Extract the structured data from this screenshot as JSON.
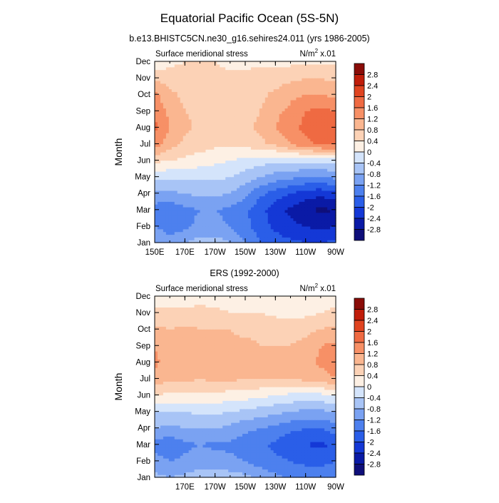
{
  "figure": {
    "title": "Equatorial Pacific Ocean (5S-5N)"
  },
  "colors": {
    "levels": [
      "#0f0f7a",
      "#0a1aa6",
      "#1438d6",
      "#2a5ee8",
      "#4d80ee",
      "#7aa2f2",
      "#a8c4f6",
      "#d4e4fb",
      "#fdf0e4",
      "#fcd2b6",
      "#fab690",
      "#f79066",
      "#ef6a42",
      "#e04420",
      "#c01d0a",
      "#8a0c08"
    ]
  },
  "chart_data": [
    {
      "type": "heatmap",
      "title": "b.e13.BHISTC5CN.ne30_g16.sehires24.011 (yrs 1986-2005)",
      "left_label": "Surface meridional stress",
      "units_label": "N/m",
      "units_sup": "2",
      "units_scale": "x.01",
      "ylabel": "Month",
      "xlabel": "",
      "xlim": [
        150,
        270
      ],
      "x_ticks": [
        150,
        170,
        190,
        210,
        230,
        250,
        270
      ],
      "x_tick_labels": [
        "150E",
        "170E",
        "170W",
        "150W",
        "130W",
        "110W",
        "90W"
      ],
      "y_tick_labels": [
        "Jan",
        "Feb",
        "Mar",
        "Apr",
        "May",
        "Jun",
        "Jul",
        "Aug",
        "Sep",
        "Oct",
        "Nov",
        "Dec"
      ],
      "contour_levels": [
        -2.8,
        -2.4,
        -2,
        -1.6,
        -1.2,
        -0.8,
        -0.4,
        0,
        0.4,
        0.8,
        1.2,
        1.6,
        2,
        2.4,
        2.8
      ],
      "colorbar_labels": [
        "2.8",
        "2.4",
        "2",
        "1.6",
        "1.2",
        "0.8",
        "0.4",
        "0",
        "-0.4",
        "-0.8",
        "-1.2",
        "-1.6",
        "-2",
        "-2.4",
        "-2.8"
      ],
      "x_lon": [
        150,
        160,
        170,
        180,
        190,
        200,
        210,
        220,
        230,
        240,
        250,
        260,
        270
      ],
      "z": [
        [
          -0.8,
          -1.0,
          -0.8,
          -0.6,
          -0.6,
          -0.8,
          -1.2,
          -1.6,
          -1.8,
          -1.9,
          -2.0,
          -2.0,
          -1.9
        ],
        [
          -1.2,
          -1.4,
          -1.3,
          -1.1,
          -1.1,
          -1.2,
          -1.5,
          -1.8,
          -2.1,
          -2.3,
          -2.4,
          -2.5,
          -2.4
        ],
        [
          -1.4,
          -1.5,
          -1.3,
          -1.2,
          -1.2,
          -1.3,
          -1.5,
          -1.9,
          -2.2,
          -2.5,
          -2.7,
          -2.9,
          -2.8
        ],
        [
          -0.9,
          -0.9,
          -0.8,
          -0.7,
          -0.7,
          -0.8,
          -1.1,
          -1.5,
          -1.8,
          -2.0,
          -2.2,
          -2.3,
          -2.1
        ],
        [
          -0.3,
          -0.3,
          -0.3,
          -0.3,
          -0.3,
          -0.4,
          -0.6,
          -0.8,
          -1.0,
          -1.1,
          -1.2,
          -1.2,
          -1.1
        ],
        [
          0.5,
          0.4,
          0.3,
          0.2,
          0.1,
          0.0,
          -0.1,
          -0.2,
          -0.3,
          -0.3,
          -0.3,
          -0.3,
          -0.3
        ],
        [
          1.4,
          1.0,
          0.7,
          0.6,
          0.5,
          0.5,
          0.5,
          0.7,
          0.9,
          1.2,
          1.5,
          1.7,
          1.7
        ],
        [
          1.7,
          1.2,
          0.9,
          0.7,
          0.6,
          0.6,
          0.7,
          0.9,
          1.2,
          1.5,
          1.7,
          1.9,
          1.8
        ],
        [
          1.5,
          1.1,
          0.8,
          0.7,
          0.6,
          0.6,
          0.6,
          0.8,
          1.1,
          1.3,
          1.6,
          1.7,
          1.6
        ],
        [
          1.3,
          0.9,
          0.7,
          0.6,
          0.6,
          0.6,
          0.6,
          0.7,
          0.9,
          1.1,
          1.2,
          1.2,
          1.1
        ],
        [
          0.7,
          0.6,
          0.6,
          0.5,
          0.5,
          0.5,
          0.5,
          0.6,
          0.6,
          0.7,
          0.8,
          0.8,
          0.7
        ],
        [
          0.0,
          0.3,
          0.4,
          0.4,
          0.4,
          0.3,
          0.3,
          0.3,
          0.3,
          0.3,
          0.3,
          0.3,
          0.3
        ]
      ]
    },
    {
      "type": "heatmap",
      "title": "ERS (1992-2000)",
      "left_label": "Surface meridional stress",
      "units_label": "N/m",
      "units_sup": "2",
      "units_scale": "x.01",
      "ylabel": "Month",
      "xlabel": "",
      "xlim": [
        150,
        270
      ],
      "x_ticks": [
        170,
        190,
        210,
        230,
        250,
        270
      ],
      "x_tick_labels": [
        "170E",
        "170W",
        "150W",
        "130W",
        "110W",
        "90W"
      ],
      "y_tick_labels": [
        "Jan",
        "Feb",
        "Mar",
        "Apr",
        "May",
        "Jun",
        "Jul",
        "Aug",
        "Sep",
        "Oct",
        "Nov",
        "Dec"
      ],
      "contour_levels": [
        -2.8,
        -2.4,
        -2,
        -1.6,
        -1.2,
        -0.8,
        -0.4,
        0,
        0.4,
        0.8,
        1.2,
        1.6,
        2,
        2.4,
        2.8
      ],
      "colorbar_labels": [
        "2.8",
        "2.4",
        "2",
        "1.6",
        "1.2",
        "0.8",
        "0.4",
        "0",
        "-0.4",
        "-0.8",
        "-1.2",
        "-1.6",
        "-2",
        "-2.4",
        "-2.8"
      ],
      "x_lon": [
        150,
        160,
        170,
        180,
        190,
        200,
        210,
        220,
        230,
        240,
        250,
        260,
        270
      ],
      "z": [
        [
          -0.7,
          -0.8,
          -0.7,
          -0.6,
          -0.6,
          -0.6,
          -0.7,
          -0.9,
          -1.1,
          -1.3,
          -1.3,
          -1.4,
          -1.3
        ],
        [
          -1.0,
          -1.2,
          -1.1,
          -1.0,
          -1.0,
          -1.1,
          -1.2,
          -1.4,
          -1.5,
          -1.6,
          -1.7,
          -1.7,
          -1.6
        ],
        [
          -1.4,
          -1.5,
          -1.3,
          -1.2,
          -1.3,
          -1.3,
          -1.4,
          -1.5,
          -1.7,
          -1.9,
          -2.0,
          -2.1,
          -1.9
        ],
        [
          -0.8,
          -0.9,
          -0.8,
          -0.8,
          -0.8,
          -0.9,
          -1.1,
          -1.2,
          -1.3,
          -1.5,
          -1.6,
          -1.6,
          -1.4
        ],
        [
          -0.4,
          -0.4,
          -0.4,
          -0.3,
          -0.3,
          -0.4,
          -0.5,
          -0.6,
          -0.7,
          -0.8,
          -0.9,
          -0.9,
          -0.8
        ],
        [
          0.4,
          0.3,
          0.3,
          0.3,
          0.3,
          0.2,
          0.2,
          0.1,
          0.0,
          -0.1,
          -0.1,
          -0.1,
          0.0
        ],
        [
          1.0,
          0.9,
          0.9,
          0.8,
          0.9,
          0.9,
          0.8,
          0.8,
          0.8,
          0.8,
          0.9,
          1.0,
          1.2
        ],
        [
          1.3,
          1.0,
          1.0,
          0.9,
          1.0,
          1.0,
          0.9,
          0.9,
          0.9,
          0.9,
          1.0,
          1.3,
          1.4
        ],
        [
          1.2,
          0.9,
          0.9,
          0.9,
          0.9,
          0.9,
          0.9,
          0.8,
          0.8,
          0.8,
          0.9,
          1.2,
          1.3
        ],
        [
          0.9,
          0.8,
          0.9,
          0.8,
          0.8,
          0.8,
          0.7,
          0.7,
          0.7,
          0.7,
          0.7,
          0.8,
          0.9
        ],
        [
          0.5,
          0.5,
          0.5,
          0.5,
          0.5,
          0.4,
          0.4,
          0.4,
          0.3,
          0.3,
          0.3,
          0.4,
          0.5
        ],
        [
          0.1,
          0.2,
          0.2,
          0.3,
          0.2,
          0.2,
          0.2,
          0.2,
          0.1,
          0.1,
          0.1,
          0.2,
          0.2
        ]
      ]
    }
  ]
}
